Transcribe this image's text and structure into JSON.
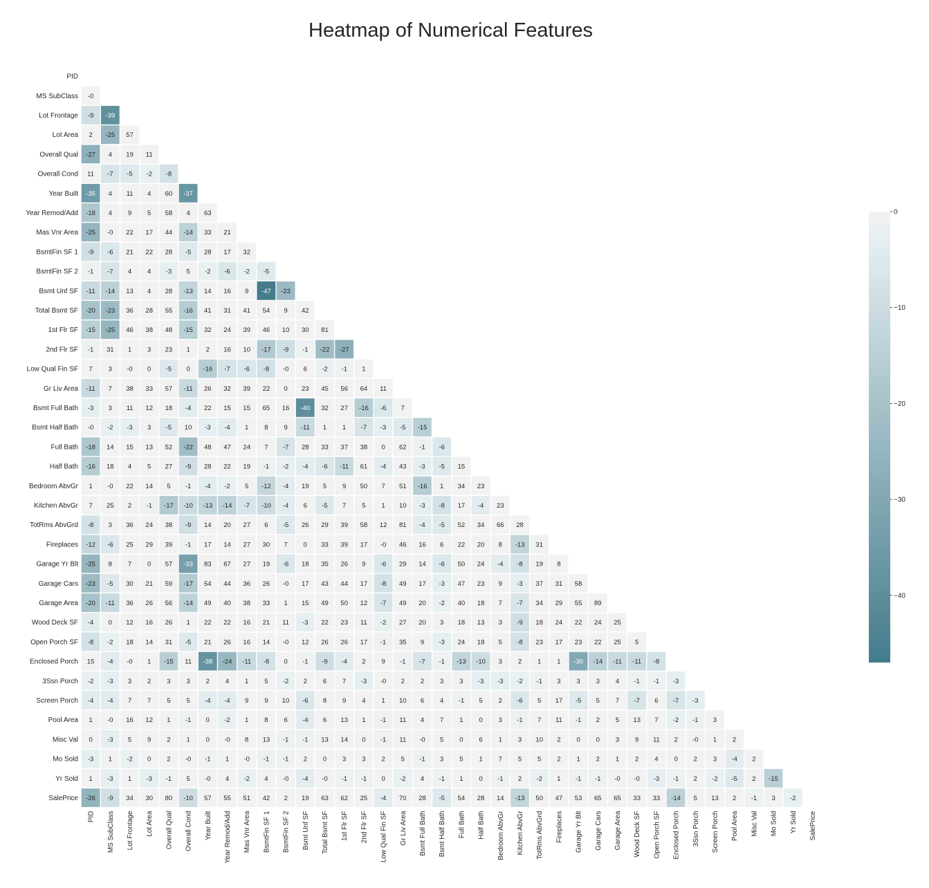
{
  "chart_data": {
    "type": "heatmap",
    "title": "Heatmap of Numerical Features",
    "labels": [
      "PID",
      "MS SubClass",
      "Lot Frontage",
      "Lot Area",
      "Overall Qual",
      "Overall Cond",
      "Year Built",
      "Year Remod/Add",
      "Mas Vnr Area",
      "BsmtFin SF 1",
      "BsmtFin SF 2",
      "Bsmt Unf SF",
      "Total Bsmt SF",
      "1st Flr SF",
      "2nd Flr SF",
      "Low Qual Fin SF",
      "Gr Liv Area",
      "Bsmt Full Bath",
      "Bsmt Half Bath",
      "Full Bath",
      "Half Bath",
      "Bedroom AbvGr",
      "Kitchen AbvGr",
      "TotRms AbvGrd",
      "Fireplaces",
      "Garage Yr Blt",
      "Garage Cars",
      "Garage Area",
      "Wood Deck SF",
      "Open Porch SF",
      "Enclosed Porch",
      "3Ssn Porch",
      "Screen Porch",
      "Pool Area",
      "Misc Val",
      "Mo Sold",
      "Yr Sold",
      "SalePrice"
    ],
    "values": [
      [],
      [
        "-0"
      ],
      [
        "-9",
        "-39"
      ],
      [
        "2",
        "-25",
        "57"
      ],
      [
        "-27",
        "4",
        "19",
        "11"
      ],
      [
        "11",
        "-7",
        "-5",
        "-2",
        "-8"
      ],
      [
        "-35",
        "4",
        "11",
        "4",
        "60",
        "-37"
      ],
      [
        "-18",
        "4",
        "9",
        "5",
        "58",
        "4",
        "63"
      ],
      [
        "-25",
        "-0",
        "22",
        "17",
        "44",
        "-14",
        "33",
        "21"
      ],
      [
        "-9",
        "-6",
        "21",
        "22",
        "28",
        "-5",
        "28",
        "17",
        "32"
      ],
      [
        "-1",
        "-7",
        "4",
        "4",
        "-3",
        "5",
        "-2",
        "-6",
        "-2",
        "-5"
      ],
      [
        "-11",
        "-14",
        "13",
        "4",
        "28",
        "-13",
        "14",
        "16",
        "9",
        "-47",
        "-23"
      ],
      [
        "-20",
        "-23",
        "36",
        "28",
        "55",
        "-16",
        "41",
        "31",
        "41",
        "54",
        "9",
        "42"
      ],
      [
        "-15",
        "-25",
        "46",
        "38",
        "48",
        "-15",
        "32",
        "24",
        "39",
        "46",
        "10",
        "30",
        "81"
      ],
      [
        "-1",
        "31",
        "1",
        "3",
        "23",
        "1",
        "2",
        "16",
        "10",
        "-17",
        "-9",
        "-1",
        "-22",
        "-27"
      ],
      [
        "7",
        "3",
        "-0",
        "0",
        "-5",
        "0",
        "-16",
        "-7",
        "-6",
        "-8",
        "-0",
        "6",
        "-2",
        "-1",
        "1"
      ],
      [
        "-11",
        "7",
        "38",
        "33",
        "57",
        "-11",
        "26",
        "32",
        "39",
        "22",
        "0",
        "23",
        "45",
        "56",
        "64",
        "11"
      ],
      [
        "-3",
        "3",
        "11",
        "12",
        "18",
        "-4",
        "22",
        "15",
        "15",
        "65",
        "16",
        "-40",
        "32",
        "27",
        "-16",
        "-6",
        "7"
      ],
      [
        "-0",
        "-2",
        "-3",
        "3",
        "-5",
        "10",
        "-3",
        "-4",
        "1",
        "8",
        "9",
        "-11",
        "1",
        "1",
        "-7",
        "-3",
        "-5",
        "-15"
      ],
      [
        "-18",
        "14",
        "15",
        "13",
        "52",
        "-22",
        "48",
        "47",
        "24",
        "7",
        "-7",
        "28",
        "33",
        "37",
        "38",
        "0",
        "62",
        "-1",
        "-6"
      ],
      [
        "-16",
        "18",
        "4",
        "5",
        "27",
        "-9",
        "28",
        "22",
        "19",
        "-1",
        "-2",
        "-4",
        "-6",
        "-11",
        "61",
        "-4",
        "43",
        "-3",
        "-5",
        "15"
      ],
      [
        "1",
        "-0",
        "22",
        "14",
        "5",
        "-1",
        "-4",
        "-2",
        "5",
        "-12",
        "-4",
        "19",
        "5",
        "9",
        "50",
        "7",
        "51",
        "-16",
        "1",
        "34",
        "23"
      ],
      [
        "7",
        "25",
        "2",
        "-1",
        "-17",
        "-10",
        "-13",
        "-14",
        "-7",
        "-10",
        "-4",
        "6",
        "-5",
        "7",
        "5",
        "1",
        "10",
        "-3",
        "-8",
        "17",
        "-4",
        "23"
      ],
      [
        "-8",
        "3",
        "36",
        "24",
        "38",
        "-9",
        "14",
        "20",
        "27",
        "6",
        "-5",
        "26",
        "29",
        "39",
        "58",
        "12",
        "81",
        "-4",
        "-5",
        "52",
        "34",
        "66",
        "28"
      ],
      [
        "-12",
        "-6",
        "25",
        "29",
        "39",
        "-1",
        "17",
        "14",
        "27",
        "30",
        "7",
        "0",
        "33",
        "39",
        "17",
        "-0",
        "46",
        "16",
        "6",
        "22",
        "20",
        "8",
        "-13",
        "31"
      ],
      [
        "-25",
        "8",
        "7",
        "0",
        "57",
        "-33",
        "83",
        "67",
        "27",
        "19",
        "-6",
        "18",
        "35",
        "26",
        "9",
        "-6",
        "29",
        "14",
        "-6",
        "50",
        "24",
        "-4",
        "-8",
        "19",
        "8"
      ],
      [
        "-23",
        "-5",
        "30",
        "21",
        "59",
        "-17",
        "54",
        "44",
        "36",
        "26",
        "-0",
        "17",
        "43",
        "44",
        "17",
        "-8",
        "49",
        "17",
        "-3",
        "47",
        "23",
        "9",
        "-3",
        "37",
        "31",
        "58"
      ],
      [
        "-20",
        "-11",
        "36",
        "26",
        "56",
        "-14",
        "49",
        "40",
        "38",
        "33",
        "1",
        "15",
        "49",
        "50",
        "12",
        "-7",
        "49",
        "20",
        "-2",
        "40",
        "18",
        "7",
        "-7",
        "34",
        "29",
        "55",
        "89"
      ],
      [
        "-4",
        "0",
        "12",
        "16",
        "26",
        "1",
        "22",
        "22",
        "16",
        "21",
        "11",
        "-3",
        "22",
        "23",
        "11",
        "-2",
        "27",
        "20",
        "3",
        "18",
        "13",
        "3",
        "-9",
        "18",
        "24",
        "22",
        "24",
        "25"
      ],
      [
        "-8",
        "-2",
        "18",
        "14",
        "31",
        "-5",
        "21",
        "26",
        "16",
        "14",
        "-0",
        "12",
        "26",
        "26",
        "17",
        "-1",
        "35",
        "9",
        "-3",
        "24",
        "18",
        "5",
        "-8",
        "23",
        "17",
        "23",
        "22",
        "25",
        "5"
      ],
      [
        "15",
        "-4",
        "-0",
        "1",
        "-15",
        "11",
        "-38",
        "-24",
        "-11",
        "-8",
        "0",
        "-1",
        "-9",
        "-4",
        "2",
        "9",
        "-1",
        "-7",
        "-1",
        "-13",
        "-10",
        "3",
        "2",
        "1",
        "1",
        "-30",
        "-14",
        "-11",
        "-11",
        "-8"
      ],
      [
        "-2",
        "-3",
        "3",
        "2",
        "3",
        "3",
        "2",
        "4",
        "1",
        "5",
        "-2",
        "2",
        "6",
        "7",
        "-3",
        "-0",
        "2",
        "2",
        "3",
        "3",
        "-3",
        "-3",
        "-2",
        "-1",
        "3",
        "3",
        "3",
        "4",
        "-1",
        "-1",
        "-3"
      ],
      [
        "-4",
        "-4",
        "7",
        "7",
        "5",
        "5",
        "-4",
        "-4",
        "9",
        "9",
        "10",
        "-6",
        "8",
        "9",
        "4",
        "1",
        "10",
        "6",
        "4",
        "-1",
        "5",
        "2",
        "-6",
        "5",
        "17",
        "-5",
        "5",
        "7",
        "-7",
        "6",
        "-7",
        "-3"
      ],
      [
        "1",
        "-0",
        "16",
        "12",
        "1",
        "-1",
        "0",
        "-2",
        "1",
        "8",
        "6",
        "-4",
        "6",
        "13",
        "1",
        "-1",
        "11",
        "4",
        "7",
        "1",
        "0",
        "3",
        "-1",
        "7",
        "11",
        "-1",
        "2",
        "5",
        "13",
        "7",
        "-2",
        "-1",
        "3"
      ],
      [
        "0",
        "-3",
        "5",
        "9",
        "2",
        "1",
        "0",
        "-0",
        "8",
        "13",
        "-1",
        "-1",
        "13",
        "14",
        "0",
        "-1",
        "11",
        "-0",
        "5",
        "0",
        "6",
        "1",
        "3",
        "10",
        "2",
        "0",
        "0",
        "3",
        "9",
        "11",
        "2",
        "-0",
        "1",
        "2"
      ],
      [
        "-3",
        "1",
        "-2",
        "0",
        "2",
        "-0",
        "-1",
        "1",
        "-0",
        "-1",
        "-1",
        "2",
        "0",
        "3",
        "3",
        "2",
        "5",
        "-1",
        "3",
        "5",
        "1",
        "7",
        "5",
        "5",
        "2",
        "1",
        "2",
        "1",
        "2",
        "4",
        "0",
        "2",
        "3",
        "-4",
        "2"
      ],
      [
        "1",
        "-3",
        "1",
        "-3",
        "-1",
        "5",
        "-0",
        "4",
        "-2",
        "4",
        "-0",
        "-4",
        "-0",
        "-1",
        "-1",
        "0",
        "-2",
        "4",
        "-1",
        "1",
        "0",
        "-1",
        "2",
        "-2",
        "1",
        "-1",
        "-1",
        "-0",
        "-0",
        "-3",
        "-1",
        "2",
        "-2",
        "-5",
        "2",
        "-15"
      ],
      [
        "-26",
        "-9",
        "34",
        "30",
        "80",
        "-10",
        "57",
        "55",
        "51",
        "42",
        "2",
        "19",
        "63",
        "62",
        "25",
        "-4",
        "70",
        "28",
        "-5",
        "54",
        "28",
        "14",
        "-13",
        "50",
        "47",
        "53",
        "65",
        "65",
        "33",
        "33",
        "-14",
        "5",
        "13",
        "2",
        "-1",
        "3",
        "-2"
      ]
    ],
    "colorbar": {
      "ticks": [
        "0",
        "−10",
        "−20",
        "−30",
        "−40"
      ],
      "vmin": -47,
      "vmax": 0,
      "color_high": "#f2f2f2",
      "color_mid": "#e6eff2",
      "color_low": "#447c8c"
    },
    "grid": false,
    "legend": "colorbar right"
  }
}
